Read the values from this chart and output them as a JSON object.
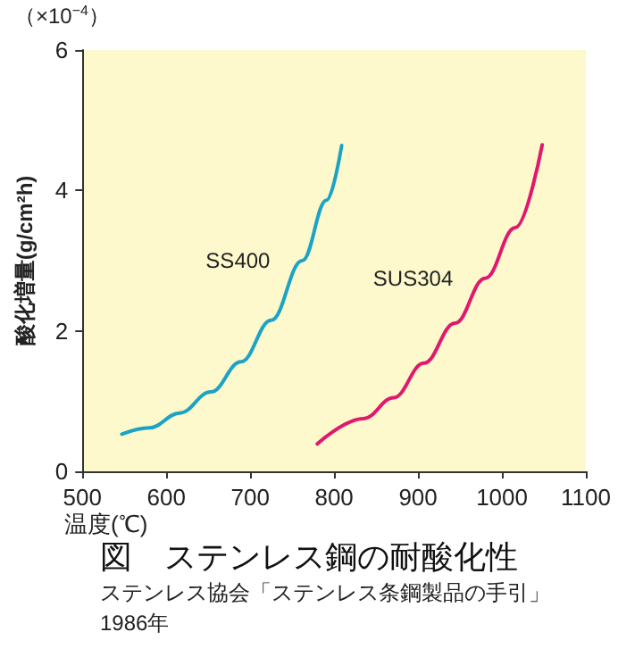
{
  "chart_data": {
    "type": "line",
    "title": "図　ステンレス鋼の耐酸化性",
    "xlabel": "温度(℃)",
    "ylabel": "酸化増量(g/cm²h)",
    "annotations": [
      "（×10$^{−4}$）",
      "ステンレス協会「ステンレス条鋼製品の手引」",
      "1986年"
    ],
    "series": [
      {
        "name": "SS400",
        "color": "#1ba3c6",
        "x": [
          547,
          580,
          616,
          653,
          689,
          725,
          762,
          791,
          809
        ],
        "values": [
          0.53,
          0.62,
          0.83,
          1.13,
          1.56,
          2.15,
          3.0,
          3.86,
          4.64
        ]
      },
      {
        "name": "SUS304",
        "color": "#e0186e",
        "x": [
          780,
          835,
          871,
          907,
          944,
          980,
          1016,
          1048
        ],
        "values": [
          0.39,
          0.75,
          1.05,
          1.54,
          2.11,
          2.75,
          3.47,
          4.65
        ]
      }
    ],
    "xlim": [
      500,
      1100
    ],
    "xticks": [
      500,
      600,
      700,
      800,
      900,
      1000,
      1100
    ],
    "ylim": [
      0,
      6
    ],
    "yticks": [
      0,
      2,
      4,
      6
    ],
    "grid": false,
    "legend": false,
    "marker": "none",
    "line_style": "solid"
  }
}
